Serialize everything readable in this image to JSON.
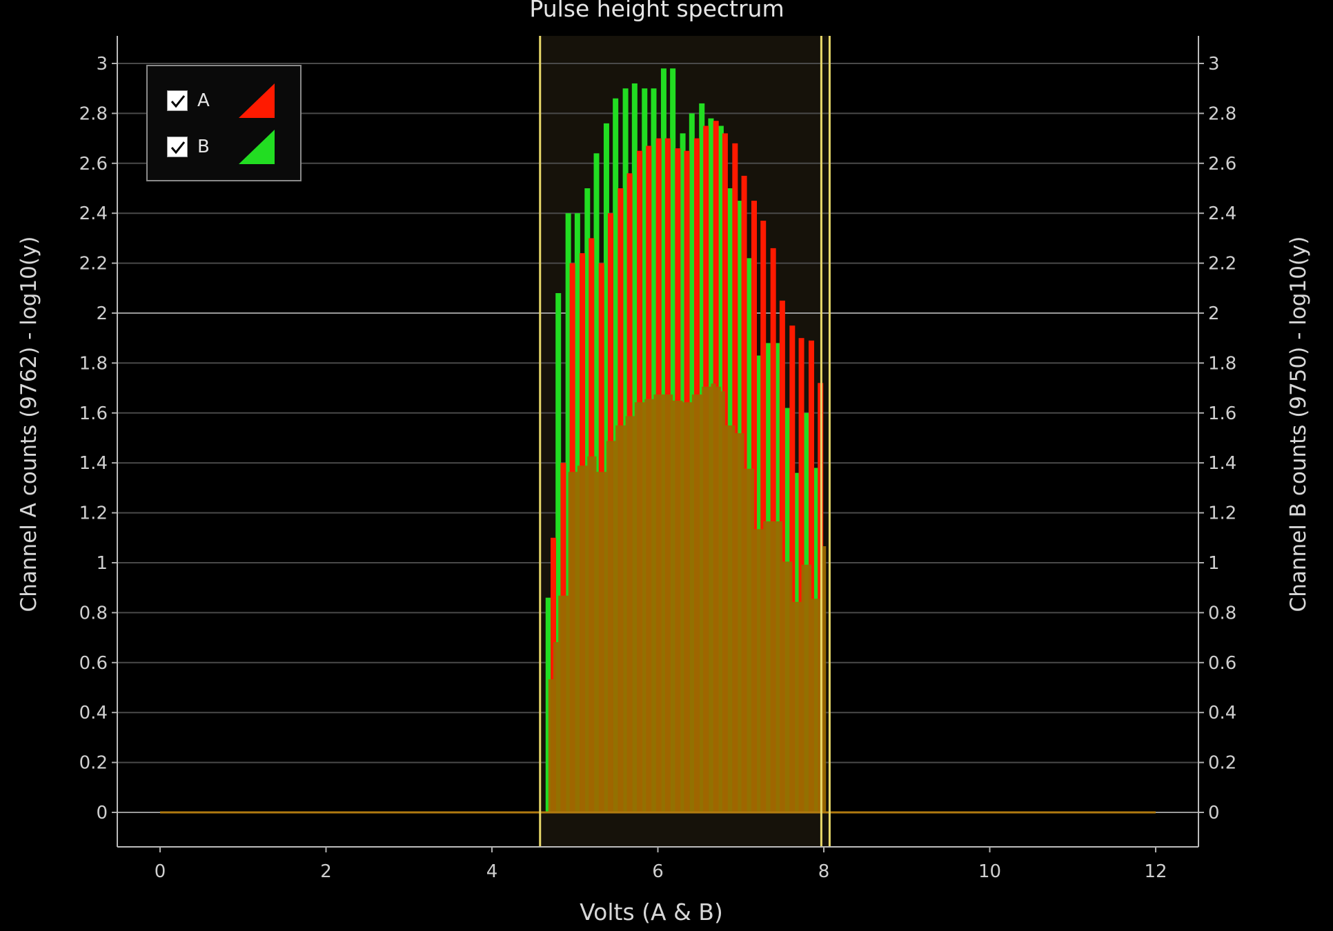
{
  "chart_data": {
    "type": "bar",
    "title": "Pulse height spectrum",
    "xlabel": "Volts (A & B)",
    "ylabel_left": "Channel A counts (9762) - log10(y)",
    "ylabel_right": "Channel B counts (9750) - log10(y)",
    "xlim": [
      -0.5,
      12.5
    ],
    "ylim": [
      -0.135,
      3.1
    ],
    "x_ticks": [
      "0",
      "2",
      "4",
      "6",
      "8",
      "10",
      "12"
    ],
    "y_ticks": [
      "0",
      "0.2",
      "0.4",
      "0.6",
      "0.8",
      "1",
      "1.2",
      "1.4",
      "1.6",
      "1.8",
      "2",
      "2.2",
      "2.4",
      "2.6",
      "2.8",
      "3"
    ],
    "grid": true,
    "legend_position": "top-left",
    "cursors": [
      4.58,
      7.97,
      8.07
    ],
    "series": [
      {
        "name": "A",
        "color": "#ff1a00",
        "x": [
          4.74,
          4.86,
          4.97,
          5.09,
          5.2,
          5.32,
          5.43,
          5.55,
          5.66,
          5.78,
          5.89,
          6.01,
          6.12,
          6.24,
          6.35,
          6.47,
          6.58,
          6.7,
          6.81,
          6.93,
          7.04,
          7.16,
          7.27,
          7.39,
          7.5,
          7.62,
          7.73,
          7.85,
          7.96
        ],
        "values": [
          1.1,
          1.4,
          2.2,
          2.24,
          2.3,
          2.2,
          2.4,
          2.5,
          2.56,
          2.65,
          2.67,
          2.7,
          2.7,
          2.66,
          2.65,
          2.7,
          2.75,
          2.77,
          2.72,
          2.68,
          2.55,
          2.45,
          2.37,
          2.26,
          2.05,
          1.95,
          1.9,
          1.89,
          1.72
        ]
      },
      {
        "name": "B",
        "color": "#22dd22",
        "x": [
          4.68,
          4.8,
          4.92,
          5.03,
          5.15,
          5.26,
          5.38,
          5.49,
          5.61,
          5.72,
          5.84,
          5.95,
          6.07,
          6.18,
          6.3,
          6.41,
          6.53,
          6.64,
          6.76,
          6.87,
          6.99,
          7.1,
          7.22,
          7.33,
          7.45,
          7.56,
          7.68,
          7.79,
          7.91
        ],
        "values": [
          0.86,
          2.08,
          2.4,
          2.4,
          2.5,
          2.64,
          2.76,
          2.86,
          2.9,
          2.92,
          2.9,
          2.9,
          2.98,
          2.98,
          2.72,
          2.8,
          2.84,
          2.78,
          2.75,
          2.5,
          2.45,
          2.22,
          1.83,
          1.88,
          1.88,
          1.62,
          1.36,
          1.6,
          1.38
        ]
      }
    ],
    "overlap_color": "#9a6a00"
  },
  "legend": {
    "items": [
      {
        "label": "A",
        "color": "#ff1a00"
      },
      {
        "label": "B",
        "color": "#22dd22"
      }
    ]
  }
}
